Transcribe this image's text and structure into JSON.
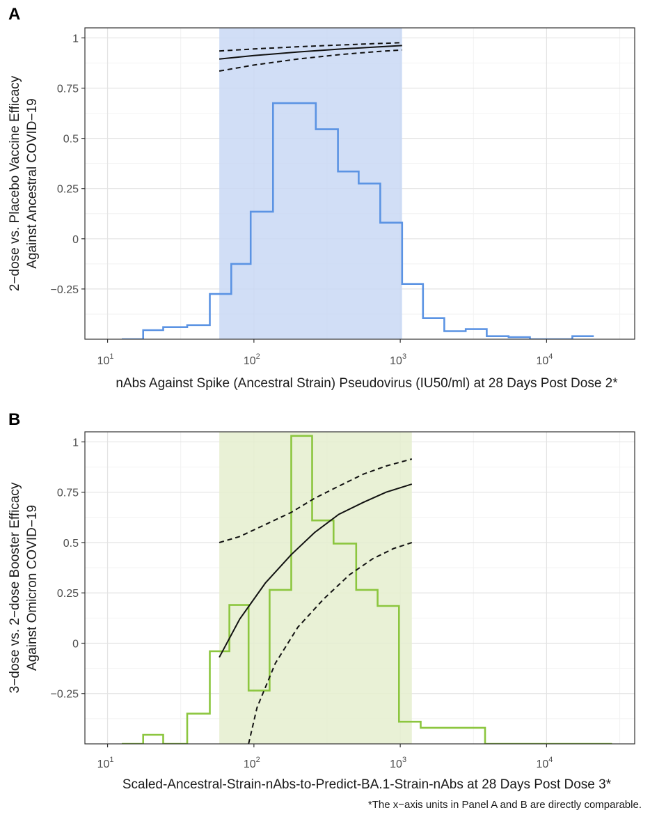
{
  "footnote": "*The x−axis units in Panel A and B are directly comparable.",
  "chart_data": [
    {
      "panel": "A",
      "type": "line",
      "ylabel_lines": [
        "2−dose vs. Placebo Vaccine Efficacy",
        "Against Ancestral COVID−19"
      ],
      "xlabel": "nAbs Against Spike (Ancestral Strain) Pseudovirus (IU50/ml) at 28 Days Post Dose 2*",
      "x_scale": "log10",
      "xlim": [
        7,
        40000
      ],
      "ylim": [
        -0.5,
        1.05
      ],
      "x_ticks": [
        10,
        100,
        1000,
        10000
      ],
      "x_tick_labels": [
        {
          "base": "10",
          "exp": "1"
        },
        {
          "base": "10",
          "exp": "2"
        },
        {
          "base": "10",
          "exp": "3"
        },
        {
          "base": "10",
          "exp": "4"
        }
      ],
      "y_ticks": [
        -0.25,
        0,
        0.25,
        0.5,
        0.75,
        1
      ],
      "y_tick_labels": [
        "−0.25",
        "0",
        "0.25",
        "0.5",
        "0.75",
        "1"
      ],
      "grid": true,
      "shaded_range": {
        "x": [
          58,
          1030
        ],
        "color": "#c9d8f5"
      },
      "histogram": {
        "color": "#5b93e3",
        "edges": [
          12.5,
          17.5,
          24,
          35,
          50,
          70,
          95,
          135,
          190,
          265,
          375,
          520,
          730,
          1030,
          1430,
          2000,
          2800,
          3900,
          5500,
          7700,
          11000,
          15000,
          21000
        ],
        "values": [
          -0.5,
          -0.455,
          -0.44,
          -0.43,
          -0.275,
          -0.125,
          0.135,
          0.675,
          0.675,
          0.545,
          0.335,
          0.275,
          0.08,
          -0.225,
          -0.395,
          -0.46,
          -0.45,
          -0.485,
          -0.49,
          -0.5,
          -0.5,
          -0.485
        ]
      },
      "curves": [
        {
          "role": "estimate",
          "dash": "solid",
          "x": [
            58,
            100,
            200,
            400,
            700,
            1030
          ],
          "y": [
            0.895,
            0.912,
            0.93,
            0.945,
            0.955,
            0.962
          ]
        },
        {
          "role": "upper",
          "dash": "dashed",
          "x": [
            58,
            100,
            200,
            400,
            700,
            1030
          ],
          "y": [
            0.935,
            0.945,
            0.956,
            0.965,
            0.972,
            0.976
          ]
        },
        {
          "role": "lower",
          "dash": "dashed",
          "x": [
            58,
            100,
            200,
            400,
            700,
            1030
          ],
          "y": [
            0.835,
            0.865,
            0.895,
            0.918,
            0.932,
            0.94
          ]
        }
      ]
    },
    {
      "panel": "B",
      "type": "line",
      "ylabel_lines": [
        "3−dose vs. 2−dose Booster Efficacy",
        "Against Omicron COVID−19"
      ],
      "xlabel": "Scaled-Ancestral-Strain-nAbs-to-Predict-BA.1-Strain-nAbs at 28 Days Post Dose 3*",
      "x_scale": "log10",
      "xlim": [
        7,
        40000
      ],
      "ylim": [
        -0.5,
        1.05
      ],
      "x_ticks": [
        10,
        100,
        1000,
        10000
      ],
      "x_tick_labels": [
        {
          "base": "10",
          "exp": "1"
        },
        {
          "base": "10",
          "exp": "2"
        },
        {
          "base": "10",
          "exp": "3"
        },
        {
          "base": "10",
          "exp": "4"
        }
      ],
      "y_ticks": [
        -0.25,
        0,
        0.25,
        0.5,
        0.75,
        1
      ],
      "y_tick_labels": [
        "−0.25",
        "0",
        "0.25",
        "0.5",
        "0.75",
        "1"
      ],
      "grid": true,
      "shaded_range": {
        "x": [
          58,
          1200
        ],
        "color": "#e5efcf"
      },
      "histogram": {
        "color": "#8cc63f",
        "edges": [
          12.5,
          17.5,
          24,
          35,
          50,
          68,
          92,
          128,
          180,
          250,
          350,
          500,
          700,
          980,
          1380,
          1950,
          2700,
          3800,
          5300,
          7400,
          10500,
          14500,
          20000,
          28000
        ],
        "values": [
          -0.5,
          -0.455,
          -0.5,
          -0.35,
          -0.04,
          0.19,
          -0.235,
          0.265,
          1.03,
          0.61,
          0.495,
          0.265,
          0.185,
          -0.39,
          -0.42,
          -0.42,
          -0.42,
          -0.5,
          -0.5,
          -0.5,
          -0.5,
          -0.5,
          -0.5
        ]
      },
      "curves": [
        {
          "role": "estimate",
          "dash": "solid",
          "x": [
            58,
            80,
            120,
            180,
            260,
            380,
            560,
            800,
            1200
          ],
          "y": [
            -0.07,
            0.12,
            0.3,
            0.44,
            0.55,
            0.64,
            0.7,
            0.75,
            0.79
          ]
        },
        {
          "role": "upper",
          "dash": "dashed",
          "x": [
            58,
            80,
            120,
            180,
            260,
            380,
            560,
            800,
            1200
          ],
          "y": [
            0.5,
            0.53,
            0.59,
            0.65,
            0.72,
            0.78,
            0.84,
            0.88,
            0.915
          ]
        },
        {
          "role": "lower",
          "dash": "dashed",
          "x": [
            92,
            105,
            140,
            200,
            300,
            450,
            650,
            900,
            1200
          ],
          "y": [
            -0.5,
            -0.32,
            -0.1,
            0.08,
            0.22,
            0.34,
            0.42,
            0.47,
            0.5
          ]
        }
      ]
    }
  ]
}
